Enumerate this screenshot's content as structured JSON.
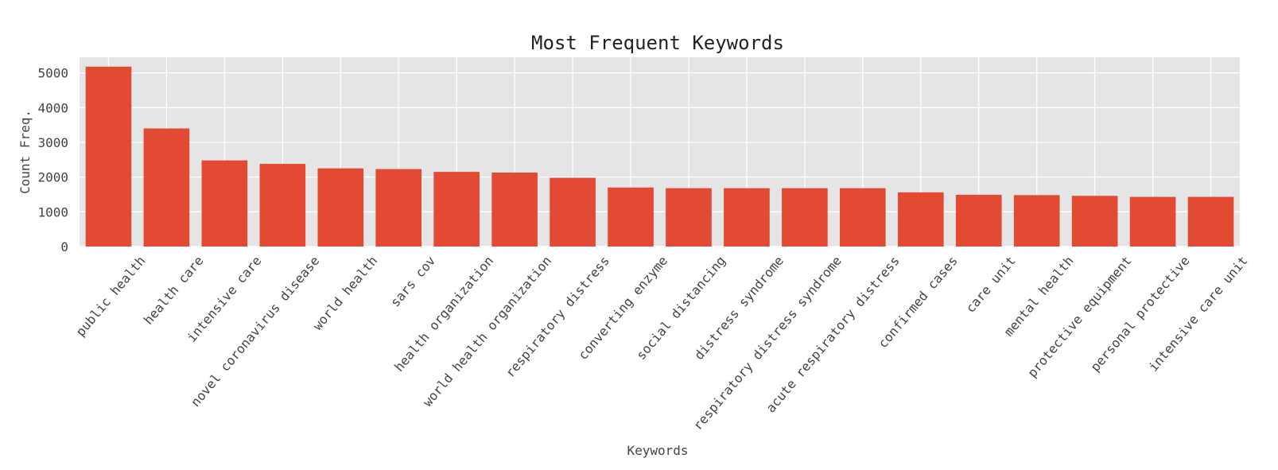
{
  "chart_data": {
    "type": "bar",
    "title": "Most Frequent Keywords",
    "xlabel": "Keywords",
    "ylabel": "Count Freq.",
    "ylim": [
      0,
      5450
    ],
    "yticks": [
      0,
      1000,
      2000,
      3000,
      4000,
      5000
    ],
    "grid": true,
    "bar_color": "#E24A33",
    "plot_background": "#E5E5E5",
    "categories": [
      "public health",
      "health care",
      "intensive care",
      "novel coronavirus disease",
      "world health",
      "sars cov",
      "health organization",
      "world health organization",
      "respiratory distress",
      "converting enzyme",
      "social distancing",
      "distress syndrome",
      "respiratory distress syndrome",
      "acute respiratory distress",
      "confirmed cases",
      "care unit",
      "mental health",
      "protective equipment",
      "personal protective",
      "intensive care unit"
    ],
    "values": [
      5180,
      3400,
      2480,
      2380,
      2250,
      2230,
      2150,
      2130,
      1980,
      1700,
      1680,
      1680,
      1680,
      1680,
      1560,
      1490,
      1480,
      1460,
      1430,
      1430
    ]
  }
}
